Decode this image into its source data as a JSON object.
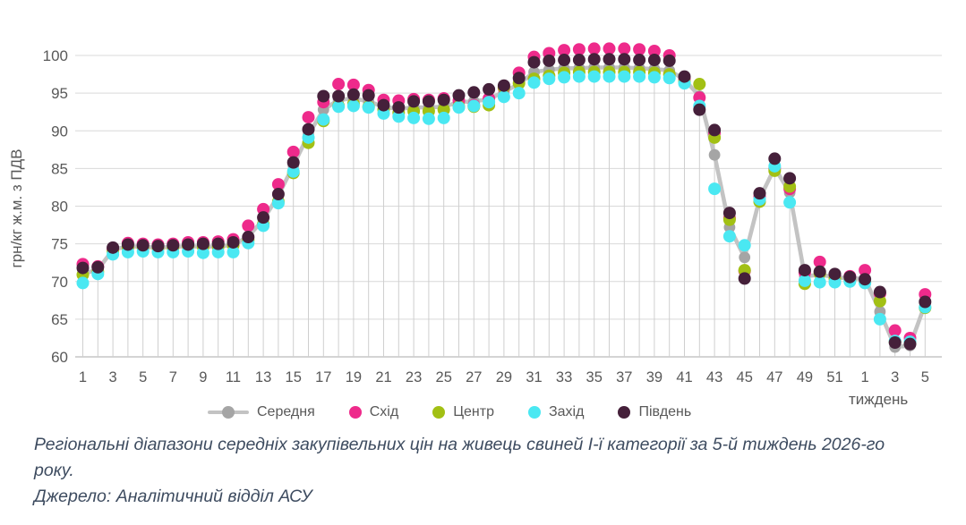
{
  "chart_data": {
    "type": "scatter",
    "title": "",
    "ylabel": "грн/кг ж.м. з ПДВ",
    "xlabel": "тиждень",
    "ylim": [
      60,
      100
    ],
    "y_ticks": [
      100,
      95,
      90,
      85,
      80,
      75,
      70,
      65,
      60
    ],
    "grid": "horizontal",
    "legend_position": "bottom",
    "categories": [
      1,
      2,
      3,
      4,
      5,
      6,
      7,
      8,
      9,
      10,
      11,
      12,
      13,
      14,
      15,
      16,
      17,
      18,
      19,
      20,
      21,
      22,
      23,
      24,
      25,
      26,
      27,
      28,
      29,
      30,
      31,
      32,
      33,
      34,
      35,
      36,
      37,
      38,
      39,
      40,
      41,
      42,
      43,
      44,
      45,
      46,
      47,
      48,
      49,
      50,
      51,
      52,
      1,
      2,
      3,
      4,
      5
    ],
    "series": [
      {
        "name": "Середня",
        "style": "line-marker",
        "color": "#c3c3c3",
        "marker_color": "#a5a5a5",
        "values": [
          71.0,
          71.6,
          74.2,
          74.7,
          74.6,
          74.5,
          74.6,
          74.7,
          74.6,
          74.7,
          74.8,
          76.0,
          78.2,
          81.4,
          85.4,
          89.5,
          92.8,
          94.1,
          94.3,
          93.9,
          93.2,
          92.9,
          93.1,
          93.1,
          93.2,
          93.8,
          93.9,
          94.2,
          95.2,
          96.2,
          97.8,
          98.1,
          98.3,
          98.3,
          98.4,
          98.4,
          98.4,
          98.3,
          98.2,
          98.0,
          96.8,
          94.6,
          86.8,
          77.2,
          73.2,
          81.0,
          85.1,
          81.8,
          70.7,
          70.9,
          70.6,
          70.4,
          70.4,
          66.0,
          61.3,
          61.5,
          67.0
        ]
      },
      {
        "name": "Схід",
        "style": "marker",
        "color": "#ee2a8b",
        "values": [
          72.3,
          72.0,
          74.3,
          75.1,
          75.0,
          74.9,
          75.0,
          75.2,
          75.2,
          75.3,
          75.6,
          77.4,
          79.6,
          82.9,
          87.2,
          91.8,
          93.8,
          96.2,
          96.1,
          95.4,
          94.1,
          94.0,
          94.2,
          94.1,
          94.3,
          94.0,
          93.4,
          94.3,
          95.7,
          97.7,
          99.8,
          100.3,
          100.7,
          100.8,
          100.9,
          100.9,
          100.9,
          100.8,
          100.6,
          100.0,
          96.9,
          94.4,
          89.7,
          78.4,
          71.4,
          81.3,
          85.0,
          82.3,
          71.2,
          72.6,
          70.9,
          70.7,
          71.5,
          68.4,
          63.5,
          62.5,
          68.3
        ]
      },
      {
        "name": "Центр",
        "style": "marker",
        "color": "#a2c014",
        "values": [
          70.9,
          71.3,
          74.0,
          74.5,
          74.5,
          74.4,
          74.5,
          74.7,
          74.6,
          74.6,
          74.8,
          75.5,
          77.6,
          80.6,
          84.4,
          88.4,
          91.3,
          93.3,
          93.6,
          93.2,
          92.8,
          92.4,
          92.6,
          92.6,
          92.8,
          93.2,
          93.2,
          93.4,
          95.8,
          96.3,
          96.9,
          97.3,
          97.7,
          97.8,
          97.8,
          97.8,
          97.8,
          97.8,
          97.7,
          97.5,
          96.5,
          96.2,
          89.1,
          78.2,
          71.5,
          80.6,
          84.7,
          82.6,
          69.7,
          71.1,
          70.4,
          70.2,
          69.9,
          67.4,
          62.0,
          61.9,
          66.5
        ]
      },
      {
        "name": "Захід",
        "style": "marker",
        "color": "#4ae8f2",
        "values": [
          69.8,
          71.0,
          73.6,
          73.9,
          74.0,
          73.9,
          73.9,
          74.0,
          73.8,
          73.9,
          73.9,
          75.1,
          77.4,
          80.4,
          84.6,
          89.1,
          91.5,
          93.2,
          93.3,
          93.1,
          92.3,
          91.9,
          91.7,
          91.6,
          91.7,
          93.1,
          93.3,
          93.8,
          94.5,
          95.0,
          96.4,
          96.9,
          97.1,
          97.2,
          97.2,
          97.2,
          97.2,
          97.2,
          97.1,
          97.0,
          96.3,
          93.3,
          82.3,
          76.0,
          74.8,
          80.9,
          85.3,
          80.5,
          70.1,
          69.9,
          69.9,
          70.0,
          69.8,
          65.0,
          62.1,
          62.0,
          66.6
        ]
      },
      {
        "name": "Південь",
        "style": "marker",
        "color": "#45203a",
        "values": [
          71.8,
          71.9,
          74.5,
          74.9,
          74.8,
          74.7,
          74.8,
          74.9,
          75.0,
          75.0,
          75.2,
          75.9,
          78.5,
          81.6,
          85.8,
          90.2,
          94.6,
          94.6,
          94.8,
          94.7,
          93.4,
          93.1,
          93.9,
          93.9,
          94.1,
          94.7,
          95.1,
          95.5,
          96.0,
          97.0,
          99.1,
          99.3,
          99.4,
          99.4,
          99.5,
          99.5,
          99.5,
          99.4,
          99.4,
          99.3,
          97.2,
          92.8,
          90.1,
          79.1,
          70.4,
          81.7,
          86.3,
          83.7,
          71.5,
          71.3,
          71.0,
          70.6,
          70.3,
          68.6,
          61.9,
          61.7,
          67.3
        ]
      }
    ],
    "colors": {
      "gridline": "#d9d9d9",
      "baseline": "#c6c6c6",
      "drop_line": "#cfcfcf",
      "tick_text": "#595959"
    }
  },
  "caption": {
    "text": "Регіональні діапазони середніх закупівельних цін на живець свиней І-ї категорії за 5-й тиждень 2026-го року."
  },
  "source": {
    "text": "Джерело: Аналітичний відділ АСУ"
  }
}
